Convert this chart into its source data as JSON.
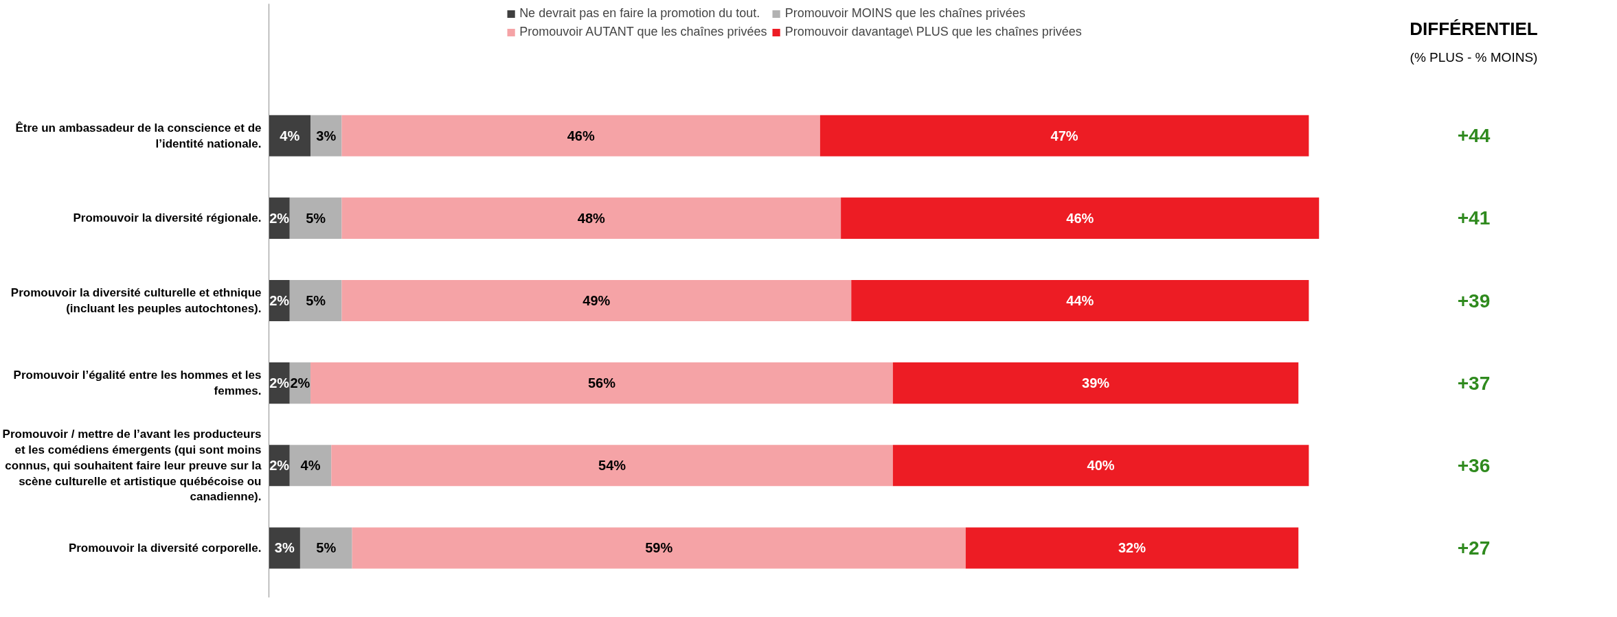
{
  "chart_data": [
    {
      "type": "bar",
      "orientation": "horizontal",
      "stacked": true,
      "legend": "top",
      "grid": false,
      "tick_labels": "y",
      "categories": [
        "Être un ambassadeur de la conscience et de l’identité nationale.",
        "Promouvoir la diversité régionale.",
        "Promouvoir la diversité culturelle et ethnique (incluant les peuples autochtones).",
        "Promouvoir l’égalité entre les hommes et les femmes.",
        "Promouvoir / mettre de l’avant les producteurs et les comédiens émergents (qui sont moins connus, qui souhaitent faire leur preuve sur la scène culturelle et artistique québécoise ou canadienne).",
        "Promouvoir la diversité corporelle."
      ],
      "series": [
        {
          "name": "Ne devrait pas en faire la promotion du tout.",
          "color": "#3f3f3f",
          "values": [
            4,
            2,
            2,
            2,
            2,
            3
          ],
          "value_labels": [
            "4%",
            "2%",
            "2%",
            "2%",
            "2%",
            "3%"
          ]
        },
        {
          "name": "Promouvoir MOINS que les chaînes privées",
          "color": "#b2b2b2",
          "values": [
            3,
            5,
            5,
            2,
            4,
            5
          ],
          "value_labels": [
            "3%",
            "5%",
            "5%",
            "2%",
            "4%",
            "5%"
          ]
        },
        {
          "name": "Promouvoir AUTANT que les chaînes privées",
          "color": "#f5a3a6",
          "values": [
            46,
            48,
            49,
            56,
            54,
            59
          ],
          "value_labels": [
            "46%",
            "48%",
            "49%",
            "56%",
            "54%",
            "59%"
          ]
        },
        {
          "name": "Promouvoir davantage\\ PLUS que les chaînes privées",
          "color": "#ed1c24",
          "values": [
            47,
            46,
            44,
            39,
            40,
            32
          ],
          "value_labels": [
            "47%",
            "46%",
            "44%",
            "39%",
            "40%",
            "32%"
          ]
        }
      ]
    },
    {
      "type": "other",
      "title": "DIFFÉRENTIEL",
      "subtitle": "(% PLUS - % MOINS)",
      "annotations": [
        "+44",
        "+41",
        "+39",
        "+37",
        "+36",
        "+27"
      ]
    }
  ]
}
